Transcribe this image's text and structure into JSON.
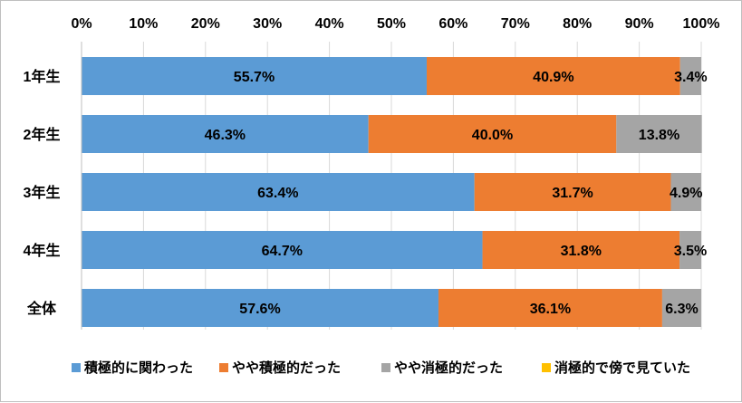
{
  "chart_data": {
    "type": "bar",
    "orientation": "horizontal",
    "stacked": true,
    "percent": true,
    "categories": [
      "1年生",
      "2年生",
      "3年生",
      "4年生",
      "全体"
    ],
    "series": [
      {
        "name": "積極的に関わった",
        "color": "#5b9bd5",
        "values": [
          55.7,
          46.3,
          63.4,
          64.7,
          57.6
        ],
        "labels": [
          "55.7%",
          "46.3%",
          "63.4%",
          "64.7%",
          "57.6%"
        ]
      },
      {
        "name": "やや積極的だった",
        "color": "#ed7d31",
        "values": [
          40.9,
          40.0,
          31.7,
          31.8,
          36.1
        ],
        "labels": [
          "40.9%",
          "40.0%",
          "31.7%",
          "31.8%",
          "36.1%"
        ]
      },
      {
        "name": "やや消極的だった",
        "color": "#a5a5a5",
        "values": [
          3.4,
          13.8,
          4.9,
          3.5,
          6.3
        ],
        "labels": [
          "3.4%",
          "13.8%",
          "4.9%",
          "3.5%",
          "6.3%"
        ]
      },
      {
        "name": "消極的で傍で見ていた",
        "color": "#ffc000",
        "values": [
          0,
          0,
          0,
          0,
          0
        ],
        "labels": [
          "",
          "",
          "",
          "",
          ""
        ]
      }
    ],
    "xaxis": {
      "range": [
        0,
        100
      ],
      "ticks": [
        "0%",
        "10%",
        "20%",
        "30%",
        "40%",
        "50%",
        "60%",
        "70%",
        "80%",
        "90%",
        "100%"
      ],
      "position": "top"
    },
    "legend": {
      "position": "bottom"
    },
    "grid": true,
    "title": "",
    "xlabel": "",
    "ylabel": ""
  }
}
